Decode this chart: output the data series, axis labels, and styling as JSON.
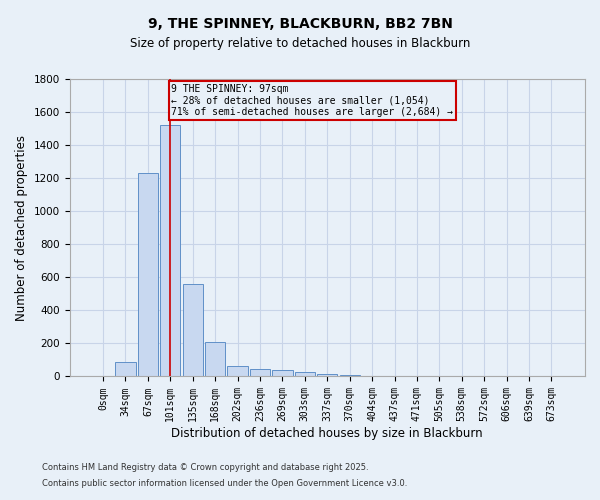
{
  "title": "9, THE SPINNEY, BLACKBURN, BB2 7BN",
  "subtitle": "Size of property relative to detached houses in Blackburn",
  "xlabel": "Distribution of detached houses by size in Blackburn",
  "ylabel": "Number of detached properties",
  "footnote1": "Contains HM Land Registry data © Crown copyright and database right 2025.",
  "footnote2": "Contains public sector information licensed under the Open Government Licence v3.0.",
  "bar_color": "#c8d8f0",
  "bar_edge_color": "#6090c8",
  "grid_color": "#c8d4e8",
  "background_color": "#e8f0f8",
  "categories": [
    "0sqm",
    "34sqm",
    "67sqm",
    "101sqm",
    "135sqm",
    "168sqm",
    "202sqm",
    "236sqm",
    "269sqm",
    "303sqm",
    "337sqm",
    "370sqm",
    "404sqm",
    "437sqm",
    "471sqm",
    "505sqm",
    "538sqm",
    "572sqm",
    "606sqm",
    "639sqm",
    "673sqm"
  ],
  "values": [
    0,
    90,
    1230,
    1520,
    560,
    210,
    65,
    47,
    37,
    28,
    14,
    8,
    3,
    0,
    0,
    0,
    0,
    0,
    0,
    0,
    0
  ],
  "ylim": [
    0,
    1800
  ],
  "yticks": [
    0,
    200,
    400,
    600,
    800,
    1000,
    1200,
    1400,
    1600,
    1800
  ],
  "vline_x": 3.0,
  "vline_color": "#cc0000",
  "annotation_box_color": "#cc0000",
  "annotation_text_line1": "9 THE SPINNEY: 97sqm",
  "annotation_text_line2": "← 28% of detached houses are smaller (1,054)",
  "annotation_text_line3": "71% of semi-detached houses are larger (2,684) →",
  "figsize": [
    6.0,
    5.0
  ],
  "dpi": 100
}
